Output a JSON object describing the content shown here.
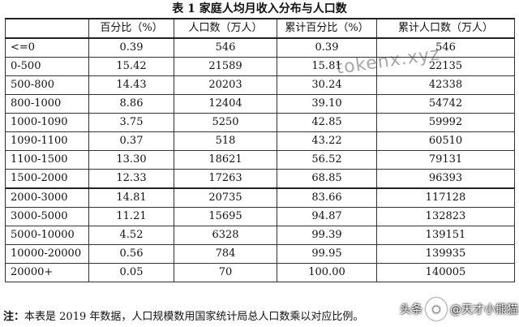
{
  "title": "表 1  家庭人均月收入分布与人口数",
  "headers": [
    "",
    "百分比（%）",
    "人口数（万人）",
    "累计百分比（%）",
    "累计人口数（万人）"
  ],
  "rows": [
    [
      "<=0",
      "0.39",
      "546",
      "0.39",
      "546"
    ],
    [
      "0-500",
      "15.42",
      "21589",
      "15.81",
      "22135"
    ],
    [
      "500-800",
      "14.43",
      "20203",
      "30.24",
      "42338"
    ],
    [
      "800-1000",
      "8.86",
      "12404",
      "39.10",
      "54742"
    ],
    [
      "1000-1090",
      "3.75",
      "5250",
      "42.85",
      "59992"
    ],
    [
      "1090-1100",
      "0.37",
      "518",
      "43.22",
      "60510"
    ],
    [
      "1100-1500",
      "13.30",
      "18621",
      "56.52",
      "79131"
    ],
    [
      "1500-2000",
      "12.33",
      "17263",
      "68.85",
      "96393"
    ],
    [
      "2000-3000",
      "14.81",
      "20735",
      "83.66",
      "117128"
    ],
    [
      "3000-5000",
      "11.21",
      "15695",
      "94.87",
      "132823"
    ],
    [
      "5000-10000",
      "4.52",
      "6328",
      "99.39",
      "139151"
    ],
    [
      "10000-20000",
      "0.56",
      "784",
      "99.95",
      "139935"
    ],
    [
      "20000+",
      "0.05",
      "70",
      "100.00",
      "140005"
    ]
  ],
  "note": {
    "label": "注：",
    "text": "本表是 2019 年数据，人口规模数用国家统计局总人口数乘以对应比例。"
  },
  "watermarks": {
    "site": "tokenx.xyz",
    "platform": "头条",
    "account": "@天才小熊猫"
  }
}
